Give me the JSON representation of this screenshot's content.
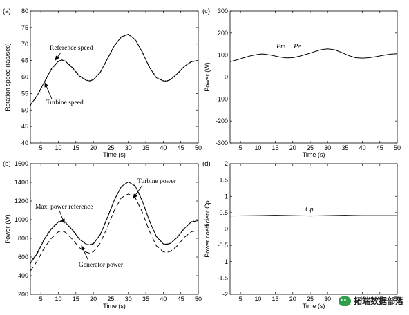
{
  "chart_data": [
    {
      "panel": "(a)",
      "type": "line",
      "xlabel": "Time (s)",
      "ylabel": "Rotation speed (rad/sec)",
      "xlim": [
        2,
        50
      ],
      "ylim": [
        40,
        80
      ],
      "xticks": [
        5,
        10,
        15,
        20,
        25,
        30,
        35,
        40,
        45,
        50
      ],
      "yticks": [
        40,
        45,
        50,
        55,
        60,
        65,
        70,
        75,
        80
      ],
      "grid": false,
      "series": [
        {
          "name": "Reference speed",
          "style": "solid",
          "color": "#000000",
          "x": [
            2,
            4,
            6,
            8,
            10,
            11,
            12,
            14,
            16,
            18,
            19,
            20,
            22,
            24,
            26,
            28,
            30,
            32,
            34,
            36,
            38,
            40,
            41,
            42,
            44,
            46,
            48,
            50
          ],
          "y": [
            51.5,
            54.5,
            58.5,
            62.5,
            64.8,
            65.2,
            64.8,
            62.8,
            60.3,
            59.0,
            58.8,
            59.2,
            61.5,
            65.5,
            69.5,
            72.2,
            73.0,
            71.3,
            67.5,
            63.0,
            59.8,
            58.8,
            58.8,
            59.2,
            61.0,
            63.2,
            64.7,
            65.0
          ]
        },
        {
          "name": "Turbine speed",
          "style": "dotted",
          "color": "#000000",
          "x": [
            2,
            4,
            6,
            8,
            10,
            11,
            12,
            14,
            16,
            18,
            19,
            20,
            22,
            24,
            26,
            28,
            30,
            32,
            34,
            36,
            38,
            40,
            41,
            42,
            44,
            46,
            48,
            50
          ],
          "y": [
            51.4,
            54.3,
            58.3,
            62.3,
            64.7,
            65.1,
            64.8,
            62.9,
            60.4,
            59.1,
            58.9,
            59.2,
            61.4,
            65.4,
            69.4,
            72.1,
            72.9,
            71.3,
            67.6,
            63.1,
            59.9,
            58.9,
            58.8,
            59.2,
            61.0,
            63.2,
            64.6,
            65.0
          ]
        }
      ],
      "annotations": [
        "Reference speed",
        "Turbine speed"
      ]
    },
    {
      "panel": "(c)",
      "type": "line",
      "xlabel": "Time (s)",
      "ylabel": "Power (W)",
      "xlim": [
        2,
        50
      ],
      "ylim": [
        -300,
        300
      ],
      "xticks": [
        5,
        10,
        15,
        20,
        25,
        30,
        35,
        40,
        45,
        50
      ],
      "yticks": [
        -300,
        -200,
        -100,
        0,
        100,
        200,
        300
      ],
      "grid": false,
      "series": [
        {
          "name": "Pm − Pe",
          "style": "solid",
          "color": "#000000",
          "x": [
            2,
            4,
            6,
            8,
            10,
            11,
            12,
            14,
            16,
            18,
            20,
            22,
            24,
            26,
            28,
            30,
            32,
            34,
            36,
            38,
            40,
            42,
            44,
            46,
            48,
            50
          ],
          "y": [
            70,
            78,
            88,
            97,
            103,
            105,
            104,
            99,
            92,
            87,
            88,
            95,
            104,
            114,
            124,
            128,
            124,
            112,
            98,
            88,
            86,
            88,
            93,
            99,
            104,
            106
          ]
        }
      ],
      "annotations": [
        "Pm − Pe"
      ]
    },
    {
      "panel": "(b)",
      "type": "line",
      "xlabel": "Time (s)",
      "ylabel": "Power (W)",
      "xlim": [
        2,
        50
      ],
      "ylim": [
        200,
        1600
      ],
      "xticks": [
        5,
        10,
        15,
        20,
        25,
        30,
        35,
        40,
        45,
        50
      ],
      "yticks": [
        200,
        400,
        600,
        800,
        1000,
        1200,
        1400,
        1600
      ],
      "grid": false,
      "series": [
        {
          "name": "Max. power reference Pw",
          "style": "solid",
          "color": "#000000",
          "x": [
            2,
            4,
            6,
            8,
            10,
            11,
            12,
            14,
            16,
            18,
            19,
            20,
            22,
            24,
            26,
            28,
            30,
            32,
            34,
            36,
            38,
            40,
            41,
            42,
            44,
            46,
            48,
            50
          ],
          "y": [
            530,
            640,
            790,
            900,
            975,
            985,
            970,
            890,
            790,
            735,
            730,
            740,
            840,
            1020,
            1210,
            1355,
            1405,
            1360,
            1200,
            990,
            820,
            740,
            735,
            745,
            810,
            905,
            975,
            990
          ]
        },
        {
          "name": "Turbine power Pm",
          "style": "dotted",
          "color": "#000000",
          "x": [
            2,
            4,
            6,
            8,
            10,
            11,
            12,
            14,
            16,
            18,
            19,
            20,
            22,
            24,
            26,
            28,
            30,
            32,
            34,
            36,
            38,
            40,
            41,
            42,
            44,
            46,
            48,
            50
          ],
          "y": [
            540,
            650,
            795,
            905,
            978,
            988,
            973,
            893,
            793,
            738,
            733,
            743,
            842,
            1022,
            1212,
            1357,
            1407,
            1362,
            1202,
            992,
            822,
            742,
            737,
            747,
            812,
            907,
            977,
            992
          ]
        },
        {
          "name": "Generator power Pe",
          "style": "dashed",
          "color": "#000000",
          "x": [
            2,
            4,
            6,
            8,
            10,
            11,
            12,
            14,
            16,
            18,
            19,
            20,
            22,
            24,
            26,
            28,
            30,
            32,
            34,
            36,
            38,
            40,
            41,
            42,
            44,
            46,
            48,
            50
          ],
          "y": [
            450,
            560,
            700,
            800,
            870,
            880,
            865,
            790,
            700,
            650,
            640,
            655,
            750,
            920,
            1100,
            1235,
            1275,
            1235,
            1080,
            880,
            720,
            655,
            650,
            660,
            720,
            810,
            870,
            885
          ]
        }
      ],
      "annotations": [
        "Max. power reference",
        "Turbine power",
        "Generator power"
      ]
    },
    {
      "panel": "(d)",
      "type": "line",
      "xlabel": "Time (s)",
      "ylabel": "Power coefficient Cp",
      "xlim": [
        2,
        50
      ],
      "ylim": [
        -2,
        2
      ],
      "xticks": [
        5,
        10,
        15,
        20,
        25,
        30,
        35,
        40,
        45,
        50
      ],
      "yticks": [
        -2,
        -1.5,
        -1,
        -0.5,
        0,
        0.5,
        1,
        1.5,
        2
      ],
      "grid": false,
      "series": [
        {
          "name": "Cp",
          "style": "solid",
          "color": "#000000",
          "x": [
            2,
            10,
            15,
            20,
            25,
            30,
            35,
            40,
            45,
            50
          ],
          "y": [
            0.4,
            0.41,
            0.42,
            0.41,
            0.4,
            0.41,
            0.42,
            0.41,
            0.41,
            0.41
          ]
        }
      ],
      "annotations": [
        "Cp"
      ]
    }
  ],
  "watermark": {
    "text": "拓端数据部落",
    "icon": "wechat-icon"
  }
}
